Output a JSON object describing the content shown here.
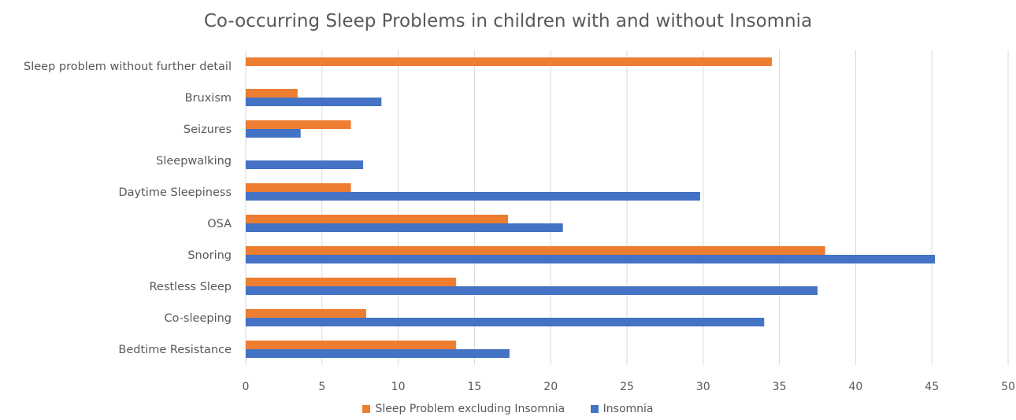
{
  "chart_data": {
    "type": "bar",
    "orientation": "horizontal",
    "title": "Co-occurring Sleep Problems in children with and without Insomnia",
    "categories": [
      "Bedtime Resistance",
      "Co-sleeping",
      "Restless Sleep",
      "Snoring",
      "OSA",
      "Daytime Sleepiness",
      "Sleepwalking",
      "Seizures",
      "Bruxism",
      "Sleep problem without further detail"
    ],
    "series": [
      {
        "name": "Sleep Problem excluding Insomnia",
        "color": "#ED7D31",
        "values": [
          13.8,
          7.9,
          13.8,
          38.0,
          17.2,
          6.9,
          null,
          6.9,
          3.4,
          34.5
        ]
      },
      {
        "name": "Insomnia",
        "color": "#4472C4",
        "values": [
          17.3,
          34.0,
          37.5,
          45.2,
          20.8,
          29.8,
          7.7,
          3.6,
          8.9,
          null
        ]
      }
    ],
    "xlim": [
      0,
      50
    ],
    "xticks": [
      "0",
      "5",
      "10",
      "15",
      "20",
      "25",
      "30",
      "35",
      "40",
      "45",
      "50"
    ],
    "xlabel": "",
    "ylabel": "",
    "grid": "vertical",
    "legend_position": "bottom"
  }
}
